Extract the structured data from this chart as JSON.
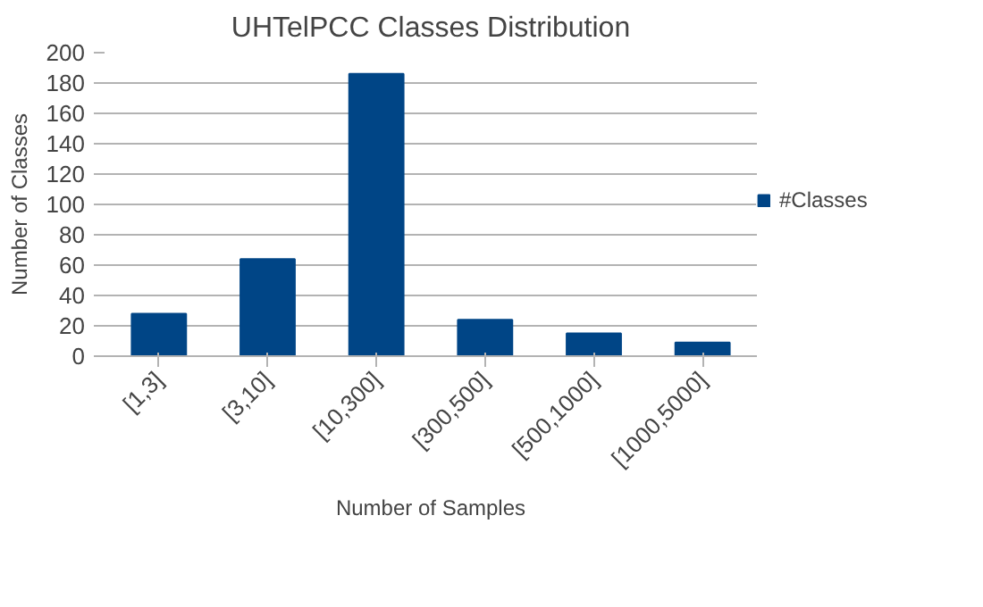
{
  "chart_data": {
    "type": "bar",
    "title": "UHTelPCC Classes Distribution",
    "xlabel": "Number of Samples",
    "ylabel": "Number of Classes",
    "categories": [
      "[1,3]",
      "[3,10]",
      "[10,300]",
      "[300,500]",
      "[500,1000]",
      "[1000,5000]"
    ],
    "series": [
      {
        "name": "#Classes",
        "color": "#004586",
        "values": [
          28,
          64,
          186,
          24,
          15,
          9
        ]
      }
    ],
    "ylim": [
      0,
      200
    ],
    "yticks": [
      0,
      20,
      40,
      60,
      80,
      100,
      120,
      140,
      160,
      180,
      200
    ],
    "grid": "y",
    "legend": "right"
  }
}
